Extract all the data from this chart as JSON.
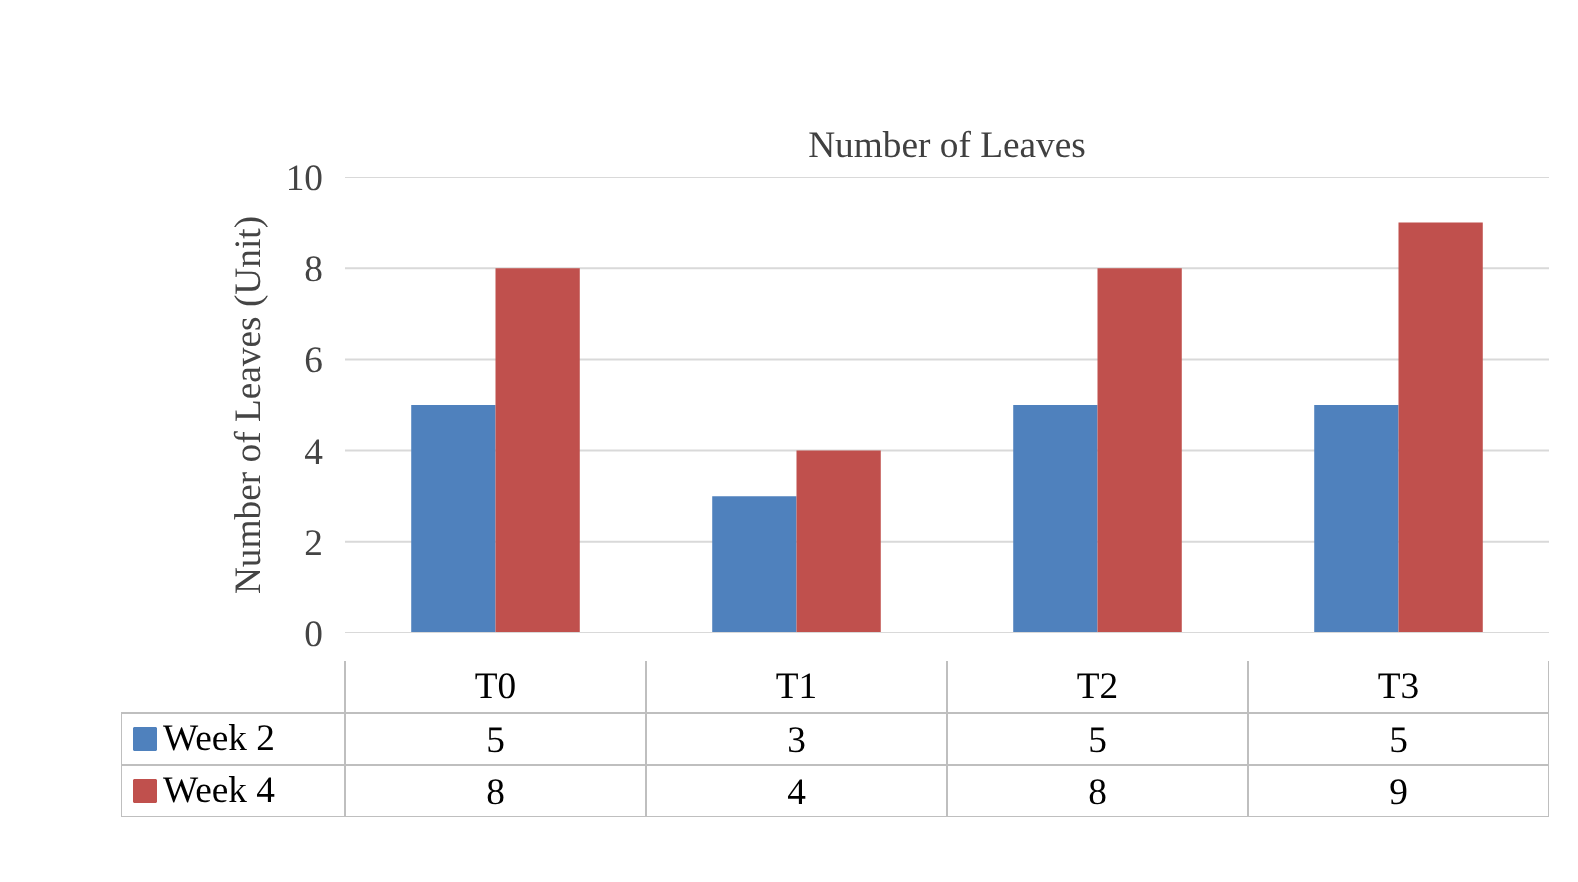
{
  "chart_data": {
    "type": "bar",
    "title": "Number of Leaves",
    "ylabel": "Number of Leaves (Unit)",
    "categories": [
      "T0",
      "T1",
      "T2",
      "T3"
    ],
    "series": [
      {
        "name": "Week 2",
        "color": "#4f81bd",
        "values": [
          5,
          3,
          5,
          5
        ]
      },
      {
        "name": "Week 4",
        "color": "#c0504d",
        "values": [
          8,
          4,
          8,
          9
        ]
      }
    ],
    "ylim": [
      0,
      10
    ],
    "yticks": [
      0,
      2,
      4,
      6,
      8,
      10
    ],
    "grid": "y",
    "data_labels": true,
    "legend": "bottom left"
  }
}
